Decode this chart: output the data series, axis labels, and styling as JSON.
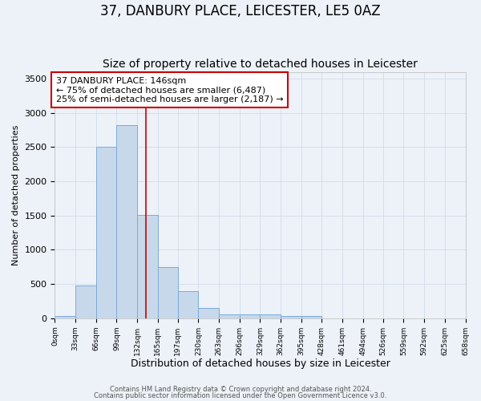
{
  "title": "37, DANBURY PLACE, LEICESTER, LE5 0AZ",
  "subtitle": "Size of property relative to detached houses in Leicester",
  "xlabel": "Distribution of detached houses by size in Leicester",
  "ylabel": "Number of detached properties",
  "bin_edges": [
    0,
    33,
    66,
    99,
    132,
    165,
    197,
    230,
    263,
    296,
    329,
    362,
    395,
    428,
    461,
    494,
    526,
    559,
    592,
    625,
    658
  ],
  "bar_heights": [
    30,
    480,
    2500,
    2820,
    1510,
    750,
    390,
    145,
    55,
    50,
    50,
    35,
    30,
    0,
    0,
    0,
    0,
    0,
    0,
    0
  ],
  "bar_color": "#c8d8eb",
  "bar_edge_color": "#7aabda",
  "bar_linewidth": 0.7,
  "vline_x": 146,
  "vline_color": "#cc0000",
  "vline_linewidth": 1.2,
  "ylim": [
    0,
    3600
  ],
  "yticks": [
    0,
    500,
    1000,
    1500,
    2000,
    2500,
    3000,
    3500
  ],
  "xtick_labels": [
    "0sqm",
    "33sqm",
    "66sqm",
    "99sqm",
    "132sqm",
    "165sqm",
    "197sqm",
    "230sqm",
    "263sqm",
    "296sqm",
    "329sqm",
    "362sqm",
    "395sqm",
    "428sqm",
    "461sqm",
    "494sqm",
    "526sqm",
    "559sqm",
    "592sqm",
    "625sqm",
    "658sqm"
  ],
  "annotation_text": "37 DANBURY PLACE: 146sqm\n← 75% of detached houses are smaller (6,487)\n25% of semi-detached houses are larger (2,187) →",
  "annotation_box_color": "#ffffff",
  "annotation_box_edgecolor": "#cc0000",
  "annotation_fontsize": 8,
  "grid_color": "#d0dcea",
  "bg_color": "#edf2f8",
  "footer_text1": "Contains HM Land Registry data © Crown copyright and database right 2024.",
  "footer_text2": "Contains public sector information licensed under the Open Government Licence v3.0.",
  "title_fontsize": 12,
  "subtitle_fontsize": 10,
  "ylabel_fontsize": 8,
  "xlabel_fontsize": 9
}
